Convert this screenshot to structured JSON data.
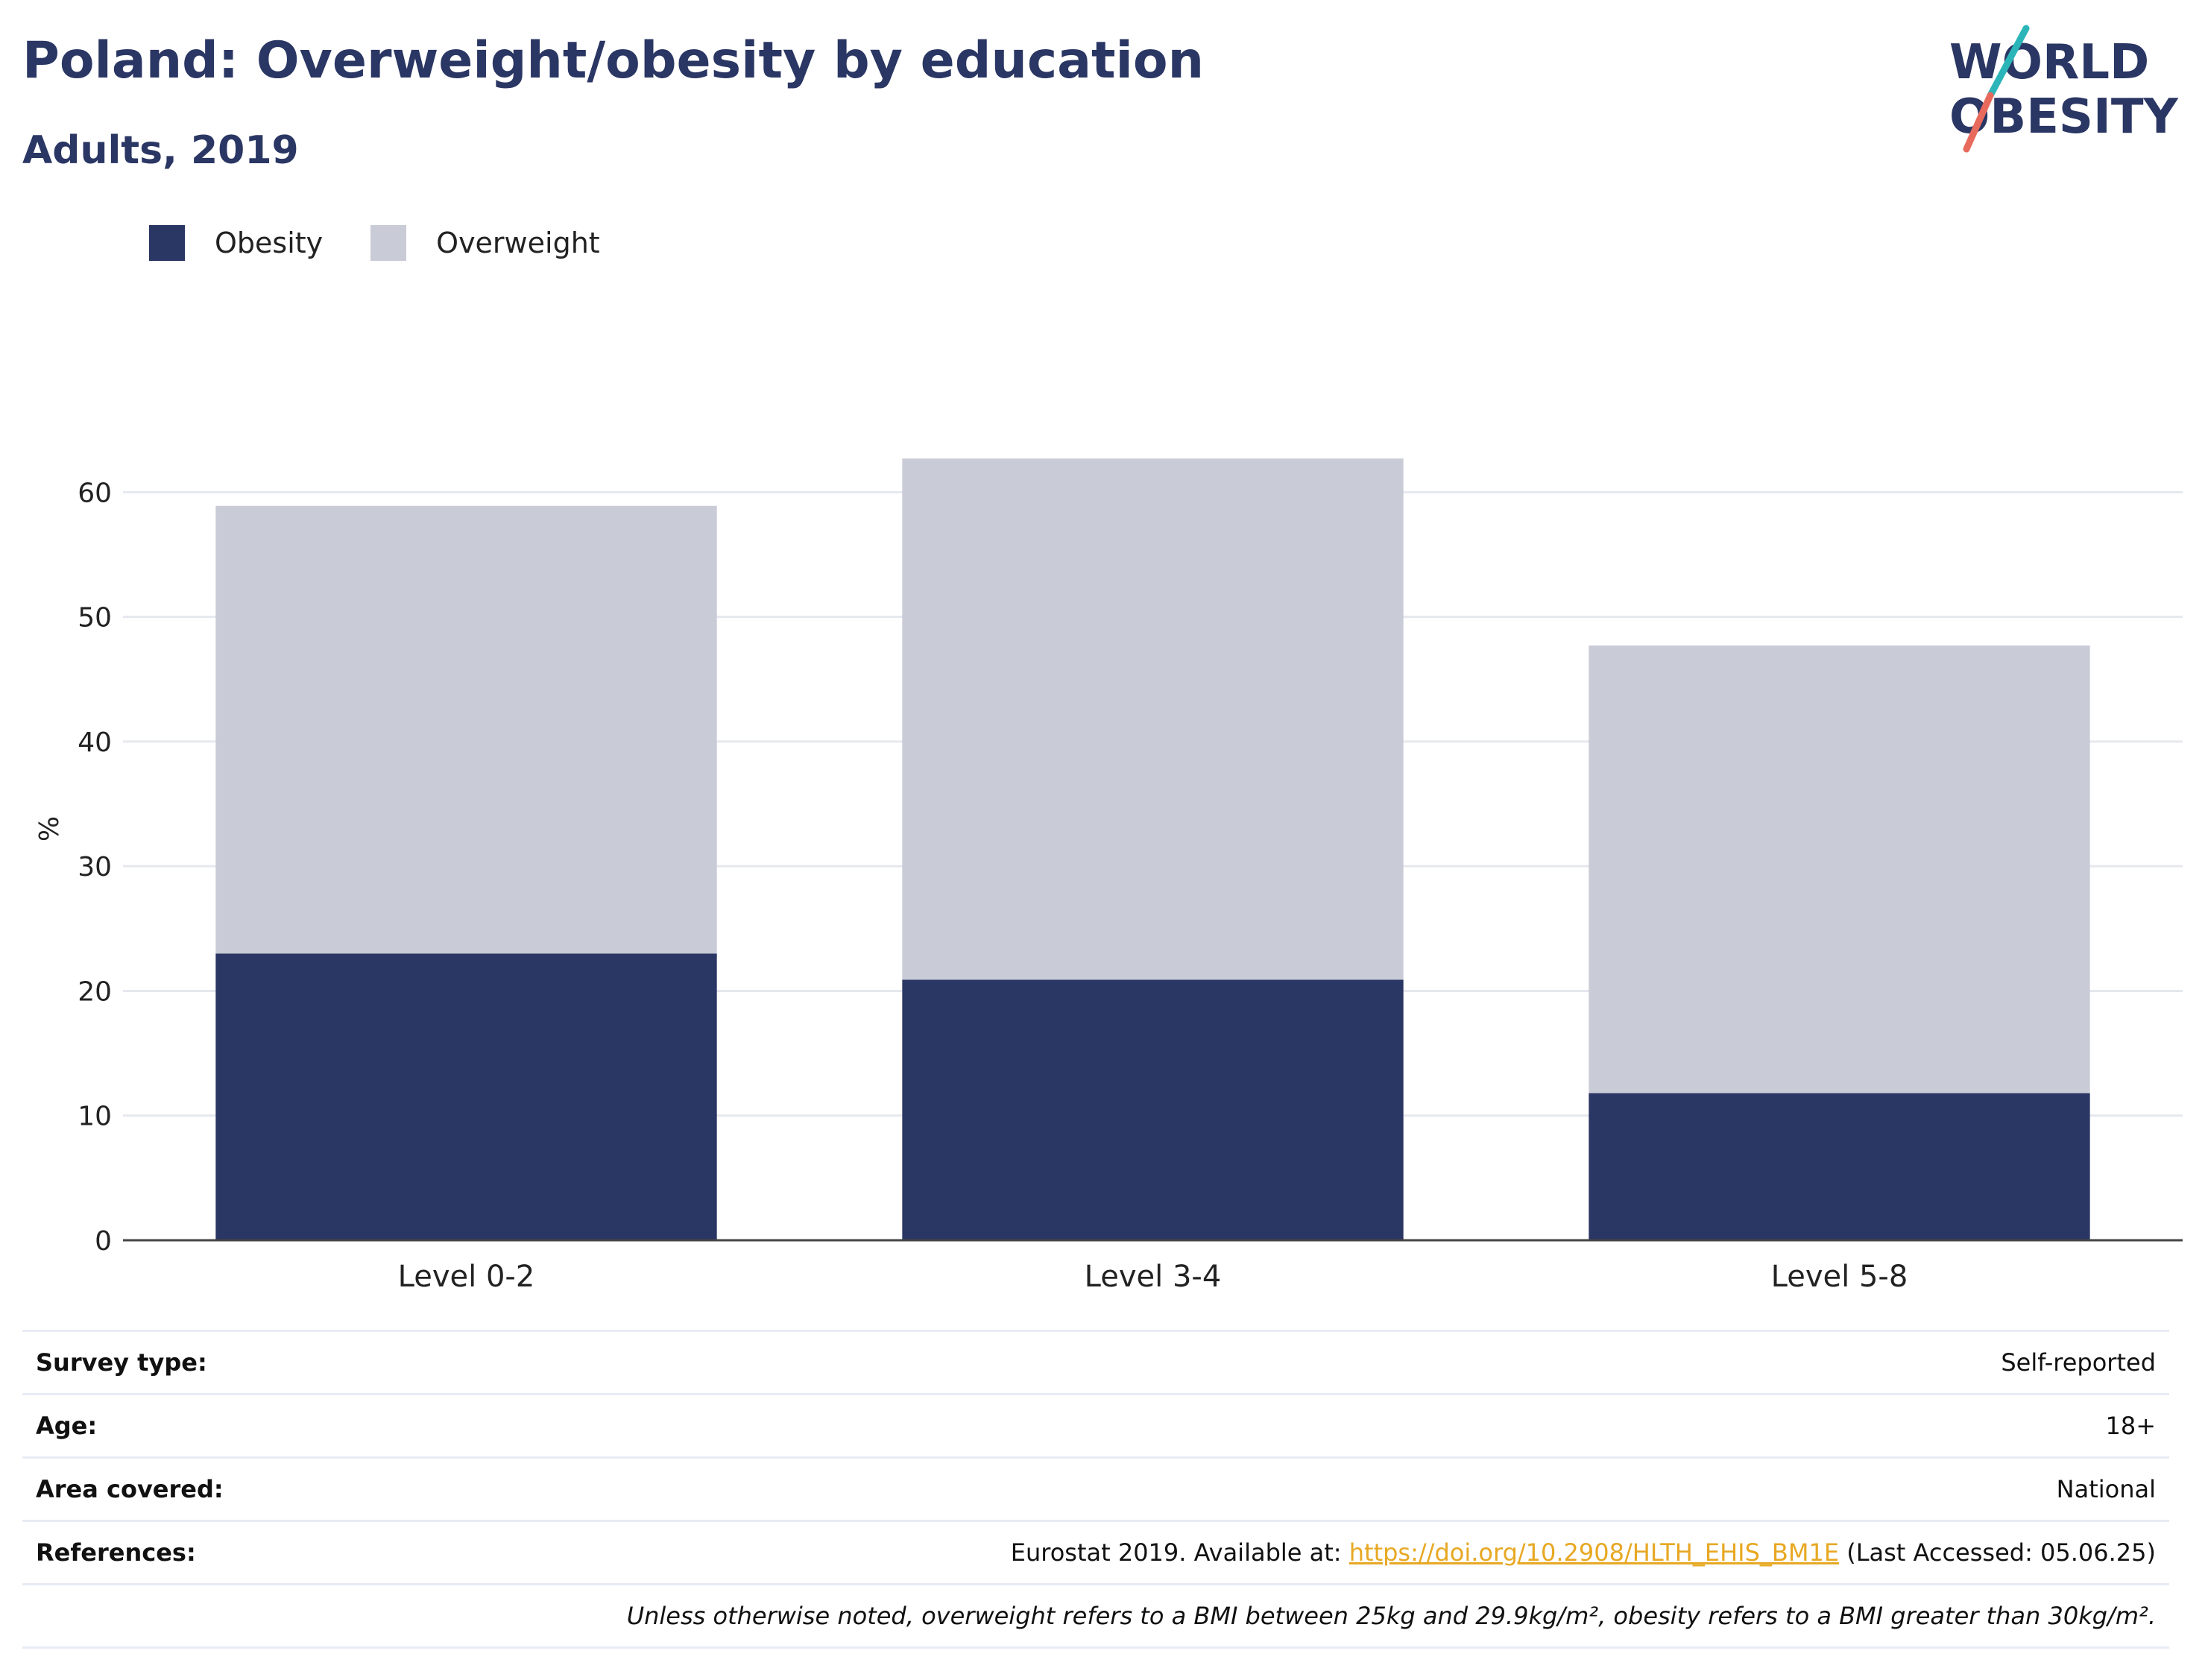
{
  "header": {
    "title": "Poland: Overweight/obesity by education",
    "subtitle": "Adults, 2019"
  },
  "logo": {
    "line1": "WORLD",
    "line2": "OBESITY",
    "colors": {
      "text": "#2a3663",
      "slash_top": "#2bb5b8",
      "slash_bottom": "#e86a5c"
    }
  },
  "legend": [
    {
      "label": "Obesity",
      "color": "#2a3663"
    },
    {
      "label": "Overweight",
      "color": "#c9cbd6"
    }
  ],
  "chart_data": {
    "type": "bar",
    "stacked": true,
    "categories": [
      "Level 0-2",
      "Level 3-4",
      "Level 5-8"
    ],
    "series": [
      {
        "name": "Obesity",
        "color": "#2a3663",
        "values": [
          23,
          20.9,
          11.8
        ]
      },
      {
        "name": "Overweight",
        "color": "#c9cbd6",
        "values": [
          35.9,
          41.8,
          35.9
        ]
      }
    ],
    "ylabel": "%",
    "ylim": [
      0,
      66
    ],
    "yticks": [
      0,
      10,
      20,
      30,
      40,
      50,
      60
    ],
    "grid": true,
    "legend_position": "top-left"
  },
  "meta": {
    "rows": [
      {
        "key": "Survey type:",
        "value": "Self-reported"
      },
      {
        "key": "Age:",
        "value": "18+"
      },
      {
        "key": "Area covered:",
        "value": "National"
      }
    ],
    "references": {
      "key": "References:",
      "prefix": "Eurostat 2019. Available at: ",
      "link": "https://doi.org/10.2908/HLTH_EHIS_BM1E",
      "suffix": " (Last Accessed: 05.06.25)"
    },
    "note": "Unless otherwise noted, overweight refers to a BMI between 25kg and 29.9kg/m², obesity refers to a BMI greater than 30kg/m²."
  }
}
